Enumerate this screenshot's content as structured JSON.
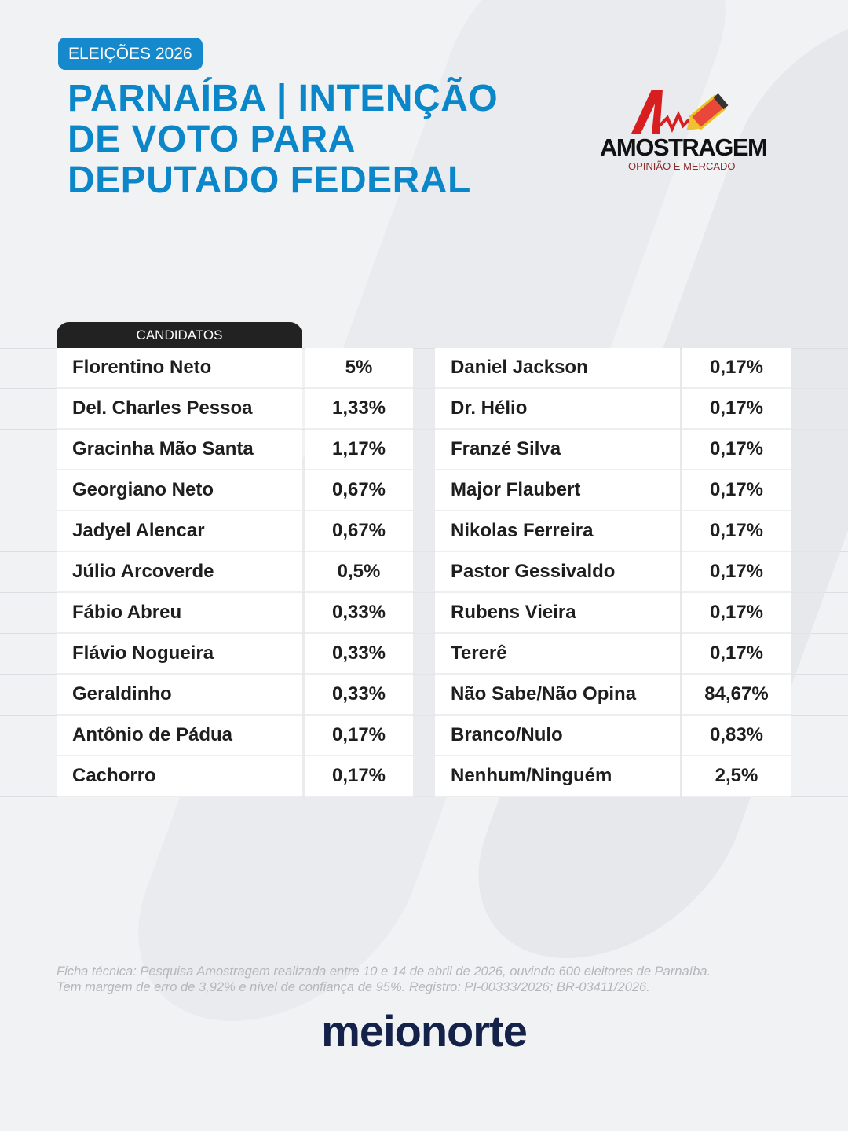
{
  "badge": "ELEIÇÕES 2026",
  "title": [
    "PARNAÍBA | INTENÇÃO",
    "DE VOTO PARA",
    "DEPUTADO FEDERAL"
  ],
  "logo": {
    "brand": "AMOSTRAGEM",
    "sub": "OPINIÃO E MERCADO"
  },
  "table_header": "CANDIDATOS",
  "left": [
    {
      "name": "Florentino Neto",
      "value": "5%"
    },
    {
      "name": "Del. Charles Pessoa",
      "value": "1,33%"
    },
    {
      "name": "Gracinha Mão Santa",
      "value": "1,17%"
    },
    {
      "name": "Georgiano Neto",
      "value": "0,67%"
    },
    {
      "name": "Jadyel Alencar",
      "value": "0,67%"
    },
    {
      "name": "Júlio Arcoverde",
      "value": "0,5%"
    },
    {
      "name": "Fábio Abreu",
      "value": "0,33%"
    },
    {
      "name": "Flávio Nogueira",
      "value": "0,33%"
    },
    {
      "name": "Geraldinho",
      "value": "0,33%"
    },
    {
      "name": "Antônio de Pádua",
      "value": "0,17%"
    },
    {
      "name": "Cachorro",
      "value": "0,17%"
    }
  ],
  "right": [
    {
      "name": "Daniel Jackson",
      "value": "0,17%"
    },
    {
      "name": "Dr. Hélio",
      "value": "0,17%"
    },
    {
      "name": "Franzé Silva",
      "value": "0,17%"
    },
    {
      "name": "Major Flaubert",
      "value": "0,17%"
    },
    {
      "name": "Nikolas Ferreira",
      "value": "0,17%"
    },
    {
      "name": "Pastor Gessivaldo",
      "value": "0,17%"
    },
    {
      "name": "Rubens Vieira",
      "value": "0,17%"
    },
    {
      "name": "Tererê",
      "value": "0,17%"
    },
    {
      "name": "Não Sabe/Não Opina",
      "value": "84,67%"
    },
    {
      "name": "Branco/Nulo",
      "value": "0,83%"
    },
    {
      "name": "Nenhum/Ninguém",
      "value": "2,5%"
    }
  ],
  "footnote": [
    "Ficha técnica: Pesquisa Amostragem realizada entre 10 e 14 de abril de 2026, ouvindo 600 eleitores de Parnaíba.",
    "Tem margem de erro de 3,92% e nível de confiança de 95%. Registro: PI-00333/2026; BR-03411/2026."
  ],
  "publisher": "meionorte"
}
